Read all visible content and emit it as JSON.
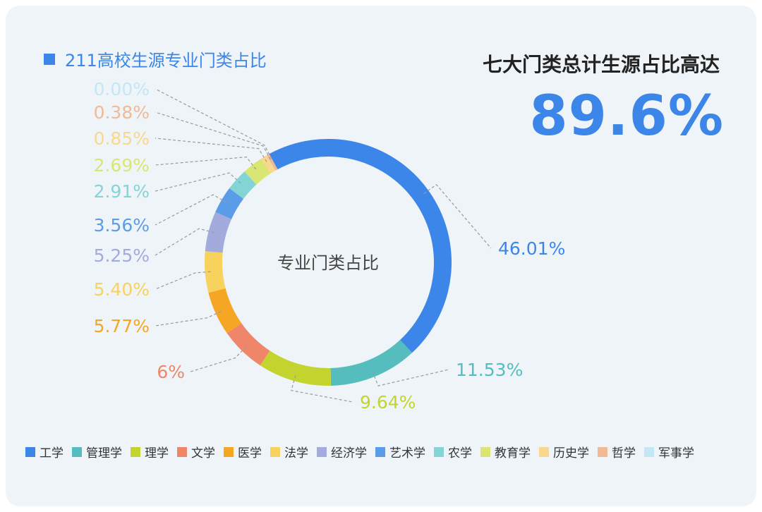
{
  "title": "211高校生源专业门类占比",
  "headline": "七大门类总计生源占比高达",
  "big_value": "89.6%",
  "center_label": "专业门类占比",
  "chart_data": {
    "type": "pie",
    "title": "211高校生源专业门类占比",
    "categories": [
      "工学",
      "管理学",
      "理学",
      "文学",
      "医学",
      "法学",
      "经济学",
      "艺术学",
      "农学",
      "教育学",
      "历史学",
      "哲学",
      "军事学"
    ],
    "values": [
      46.01,
      11.53,
      9.64,
      6,
      5.77,
      5.4,
      5.25,
      3.56,
      2.91,
      2.69,
      0.85,
      0.38,
      0.0
    ],
    "labels": [
      "46.01%",
      "11.53%",
      "9.64%",
      "6%",
      "5.77%",
      "5.40%",
      "5.25%",
      "3.56%",
      "2.91%",
      "2.69%",
      "0.85%",
      "0.38%",
      "0.00%"
    ],
    "colors": [
      "#3b86e8",
      "#56bdbe",
      "#c4d42e",
      "#ef8669",
      "#f5a623",
      "#f7d25d",
      "#a2abdc",
      "#5b9ce8",
      "#83d5d5",
      "#dae673",
      "#f8d88e",
      "#f2b995",
      "#c5e6f4"
    ],
    "legend_position": "bottom",
    "donut": true
  }
}
